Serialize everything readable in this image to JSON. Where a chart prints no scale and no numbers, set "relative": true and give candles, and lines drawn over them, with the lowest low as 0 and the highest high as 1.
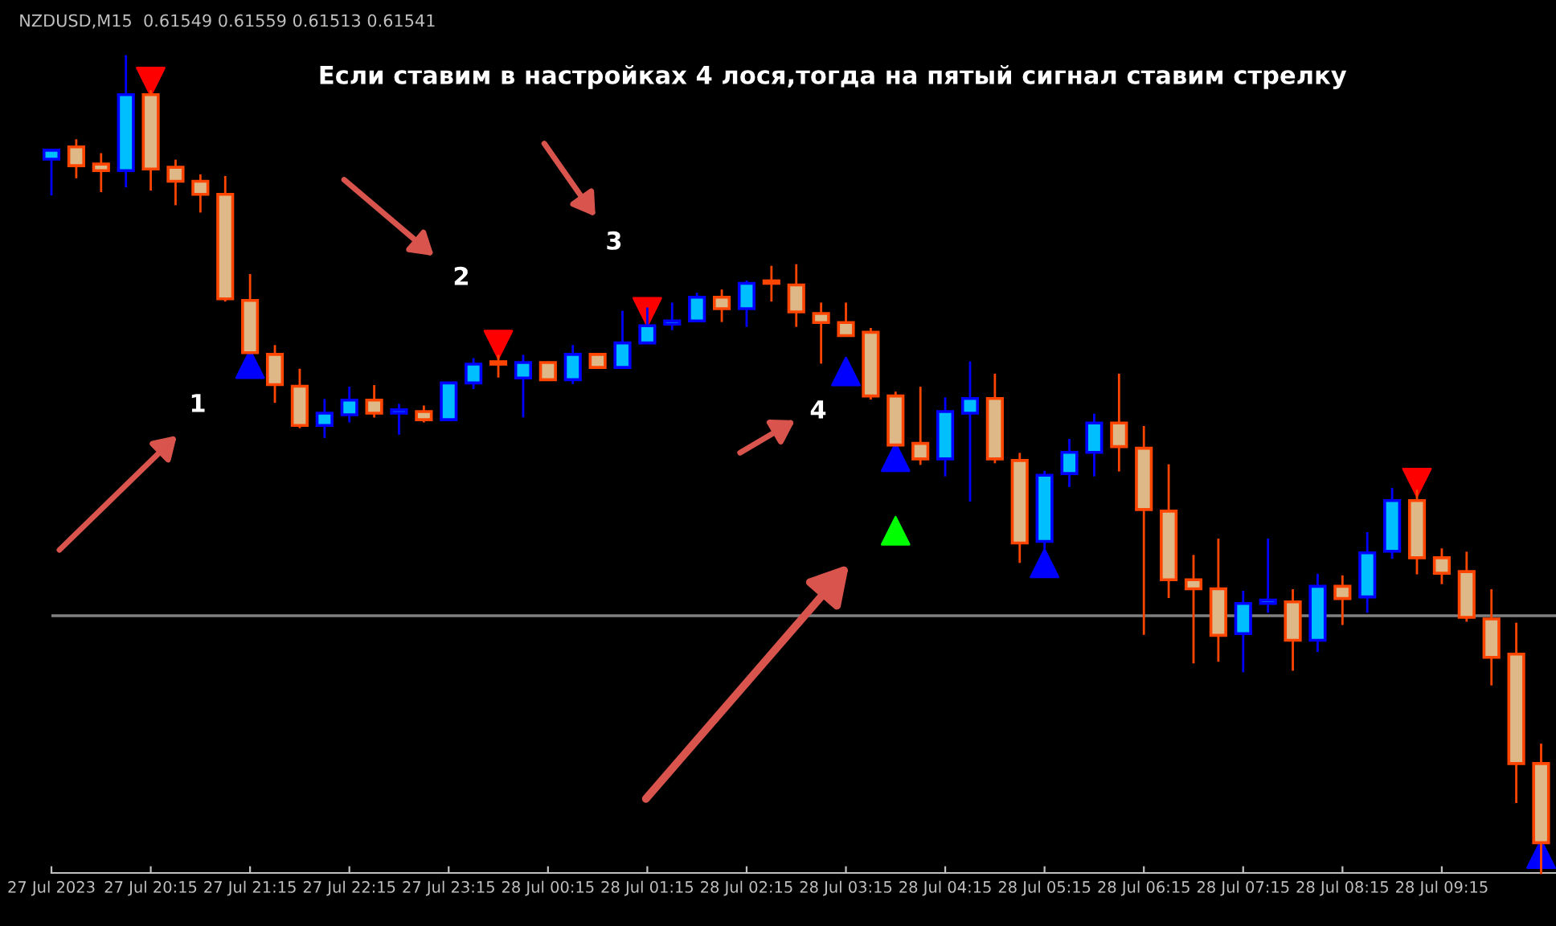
{
  "chart_data": {
    "type": "candlestick",
    "relative": true,
    "title": "Если ставим в настройках 4 лося,тогда на пятый сигнал ставим стрелку",
    "annotations": [
      "NZDUSD,M15  0.61549 0.61559 0.61513 0.61541",
      "1",
      "2",
      "3",
      "4"
    ],
    "x": [
      "2023-07-27T19:15",
      "2023-07-27T19:30",
      "2023-07-27T19:45",
      "2023-07-27T20:00",
      "2023-07-27T20:15",
      "2023-07-27T20:30",
      "2023-07-27T20:45",
      "2023-07-27T21:00",
      "2023-07-27T21:15",
      "2023-07-27T21:30",
      "2023-07-27T21:45",
      "2023-07-27T22:00",
      "2023-07-27T22:15",
      "2023-07-27T22:30",
      "2023-07-27T22:45",
      "2023-07-27T23:00",
      "2023-07-27T23:15",
      "2023-07-27T23:30",
      "2023-07-27T23:45",
      "2023-07-28T00:00",
      "2023-07-28T00:15",
      "2023-07-28T00:30",
      "2023-07-28T00:45",
      "2023-07-28T01:00",
      "2023-07-28T01:15",
      "2023-07-28T01:30",
      "2023-07-28T01:45",
      "2023-07-28T02:00",
      "2023-07-28T02:15",
      "2023-07-28T02:30",
      "2023-07-28T02:45",
      "2023-07-28T03:00",
      "2023-07-28T03:15",
      "2023-07-28T03:30",
      "2023-07-28T03:45",
      "2023-07-28T04:00",
      "2023-07-28T04:15",
      "2023-07-28T04:30",
      "2023-07-28T04:45",
      "2023-07-28T05:00",
      "2023-07-28T05:15",
      "2023-07-28T05:30",
      "2023-07-28T05:45",
      "2023-07-28T06:00",
      "2023-07-28T06:15",
      "2023-07-28T06:30",
      "2023-07-28T06:45",
      "2023-07-28T07:00",
      "2023-07-28T07:15",
      "2023-07-28T07:30",
      "2023-07-28T07:45",
      "2023-07-28T08:00",
      "2023-07-28T08:15",
      "2023-07-28T08:30",
      "2023-07-28T08:45",
      "2023-07-28T09:00",
      "2023-07-28T09:15",
      "2023-07-28T09:30",
      "2023-07-28T09:45",
      "2023-07-28T10:00",
      "2023-07-28T10:15"
    ],
    "ohlc": [
      [
        0.874,
        0.885,
        0.831,
        0.885
      ],
      [
        0.889,
        0.897,
        0.852,
        0.866
      ],
      [
        0.868,
        0.88,
        0.835,
        0.86
      ],
      [
        0.86,
        1.0,
        0.841,
        0.953
      ],
      [
        0.953,
        0.957,
        0.837,
        0.862
      ],
      [
        0.864,
        0.872,
        0.819,
        0.847
      ],
      [
        0.847,
        0.854,
        0.81,
        0.831
      ],
      [
        0.831,
        0.852,
        0.701,
        0.703
      ],
      [
        0.701,
        0.732,
        0.637,
        0.637
      ],
      [
        0.635,
        0.645,
        0.577,
        0.598
      ],
      [
        0.596,
        0.616,
        0.546,
        0.548
      ],
      [
        0.548,
        0.579,
        0.534,
        0.563
      ],
      [
        0.561,
        0.594,
        0.553,
        0.579
      ],
      [
        0.579,
        0.596,
        0.559,
        0.563
      ],
      [
        0.563,
        0.573,
        0.538,
        0.567
      ],
      [
        0.565,
        0.571,
        0.553,
        0.555
      ],
      [
        0.555,
        0.6,
        0.555,
        0.6
      ],
      [
        0.6,
        0.629,
        0.594,
        0.623
      ],
      [
        0.623,
        0.633,
        0.608,
        0.623
      ],
      [
        0.606,
        0.633,
        0.559,
        0.625
      ],
      [
        0.625,
        0.625,
        0.604,
        0.604
      ],
      [
        0.604,
        0.645,
        0.6,
        0.635
      ],
      [
        0.635,
        0.635,
        0.619,
        0.619
      ],
      [
        0.619,
        0.687,
        0.619,
        0.649
      ],
      [
        0.649,
        0.691,
        0.649,
        0.67
      ],
      [
        0.672,
        0.697,
        0.666,
        0.676
      ],
      [
        0.676,
        0.709,
        0.676,
        0.705
      ],
      [
        0.705,
        0.713,
        0.676,
        0.691
      ],
      [
        0.691,
        0.724,
        0.67,
        0.722
      ],
      [
        0.722,
        0.742,
        0.701,
        0.722
      ],
      [
        0.72,
        0.744,
        0.67,
        0.687
      ],
      [
        0.685,
        0.697,
        0.625,
        0.674
      ],
      [
        0.674,
        0.697,
        0.658,
        0.658
      ],
      [
        0.662,
        0.666,
        0.581,
        0.584
      ],
      [
        0.584,
        0.588,
        0.524,
        0.524
      ],
      [
        0.526,
        0.594,
        0.501,
        0.507
      ],
      [
        0.507,
        0.581,
        0.487,
        0.565
      ],
      [
        0.563,
        0.625,
        0.456,
        0.581
      ],
      [
        0.581,
        0.61,
        0.503,
        0.507
      ],
      [
        0.505,
        0.513,
        0.381,
        0.404
      ],
      [
        0.406,
        0.491,
        0.392,
        0.487
      ],
      [
        0.489,
        0.53,
        0.474,
        0.515
      ],
      [
        0.515,
        0.561,
        0.487,
        0.551
      ],
      [
        0.551,
        0.61,
        0.493,
        0.522
      ],
      [
        0.52,
        0.546,
        0.293,
        0.445
      ],
      [
        0.443,
        0.499,
        0.338,
        0.359
      ],
      [
        0.359,
        0.388,
        0.258,
        0.348
      ],
      [
        0.348,
        0.408,
        0.26,
        0.291
      ],
      [
        0.293,
        0.344,
        0.247,
        0.33
      ],
      [
        0.33,
        0.408,
        0.32,
        0.334
      ],
      [
        0.332,
        0.346,
        0.249,
        0.285
      ],
      [
        0.285,
        0.365,
        0.272,
        0.351
      ],
      [
        0.351,
        0.363,
        0.305,
        0.336
      ],
      [
        0.338,
        0.416,
        0.32,
        0.392
      ],
      [
        0.394,
        0.47,
        0.386,
        0.456
      ],
      [
        0.456,
        0.468,
        0.367,
        0.386
      ],
      [
        0.386,
        0.396,
        0.355,
        0.367
      ],
      [
        0.369,
        0.392,
        0.309,
        0.313
      ],
      [
        0.311,
        0.346,
        0.231,
        0.264
      ],
      [
        0.268,
        0.305,
        0.087,
        0.134
      ],
      [
        0.134,
        0.157,
        0.0,
        0.037
      ]
    ],
    "colors": [
      "#00bfff",
      "#deb887",
      "#deb887",
      "#00bfff",
      "#deb887",
      "#deb887",
      "#deb887",
      "#deb887",
      "#deb887",
      "#deb887",
      "#deb887",
      "#00bfff",
      "#00bfff",
      "#deb887",
      "#00bfff",
      "#deb887",
      "#00bfff",
      "#00bfff",
      "#deb887",
      "#00bfff",
      "#deb887",
      "#00bfff",
      "#deb887",
      "#00bfff",
      "#00bfff",
      "#00bfff",
      "#00bfff",
      "#deb887",
      "#00bfff",
      "#deb887",
      "#deb887",
      "#deb887",
      "#deb887",
      "#deb887",
      "#deb887",
      "#deb887",
      "#00bfff",
      "#00bfff",
      "#deb887",
      "#deb887",
      "#00bfff",
      "#00bfff",
      "#00bfff",
      "#deb887",
      "#deb887",
      "#deb887",
      "#deb887",
      "#deb887",
      "#00bfff",
      "#00bfff",
      "#deb887",
      "#00bfff",
      "#deb887",
      "#00bfff",
      "#00bfff",
      "#deb887",
      "#deb887",
      "#deb887",
      "#deb887",
      "#deb887",
      "#deb887"
    ],
    "series": [
      {
        "type": "scatter",
        "marker": "triangle",
        "color": "#ff0000",
        "x": [
          "2023-07-27T20:15",
          "2023-07-27T23:45",
          "2023-07-28T01:15",
          "2023-07-28T09:00"
        ],
        "values": [
          0.969,
          0.647,
          0.687,
          0.478
        ]
      },
      {
        "type": "scatter",
        "marker": "triangle",
        "color": "#0000ff",
        "x": [
          "2023-07-27T21:15",
          "2023-07-28T03:15",
          "2023-07-28T03:45",
          "2023-07-28T05:15",
          "2023-07-28T10:15"
        ],
        "values": [
          0.623,
          0.614,
          0.509,
          0.379,
          0.023
        ]
      },
      {
        "type": "scatter",
        "marker": "triangle",
        "color": "#00ff00",
        "x": [
          "2023-07-28T03:45"
        ],
        "values": [
          0.419
        ]
      }
    ],
    "ref_lines": [
      {
        "axis": "y",
        "value": 0.315,
        "color": "#808080"
      }
    ],
    "xlim": [
      "2023-07-27T19:15",
      "2023-07-28T10:24"
    ],
    "xticks": [
      {
        "value": "2023-07-27T19:15",
        "label": "27 Jul 2023"
      },
      {
        "value": "2023-07-27T20:15",
        "label": "27 Jul 20:15"
      },
      {
        "value": "2023-07-27T21:15",
        "label": "27 Jul 21:15"
      },
      {
        "value": "2023-07-27T22:15",
        "label": "27 Jul 22:15"
      },
      {
        "value": "2023-07-27T23:15",
        "label": "27 Jul 23:15"
      },
      {
        "value": "2023-07-28T00:15",
        "label": "28 Jul 00:15"
      },
      {
        "value": "2023-07-28T01:15",
        "label": "28 Jul 01:15"
      },
      {
        "value": "2023-07-28T02:15",
        "label": "28 Jul 02:15"
      },
      {
        "value": "2023-07-28T03:15",
        "label": "28 Jul 03:15"
      },
      {
        "value": "2023-07-28T04:15",
        "label": "28 Jul 04:15"
      },
      {
        "value": "2023-07-28T05:15",
        "label": "28 Jul 05:15"
      },
      {
        "value": "2023-07-28T06:15",
        "label": "28 Jul 06:15"
      },
      {
        "value": "2023-07-28T07:15",
        "label": "28 Jul 07:15"
      },
      {
        "value": "2023-07-28T08:15",
        "label": "28 Jul 08:15"
      },
      {
        "value": "2023-07-28T09:15",
        "label": "28 Jul 09:15"
      }
    ],
    "tick_labels": "x",
    "grid": false
  }
}
